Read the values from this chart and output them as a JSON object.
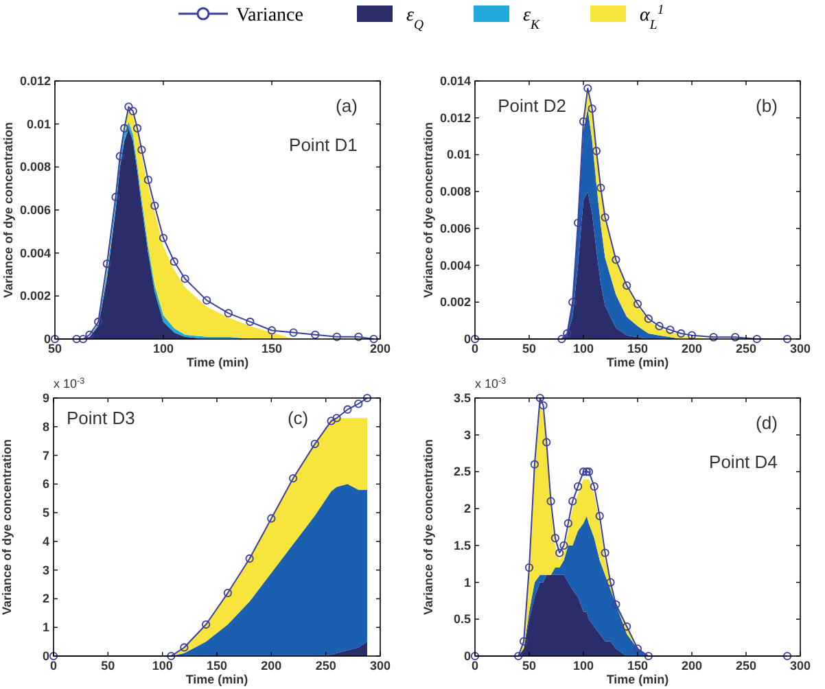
{
  "chart_data": [
    {
      "type": "area",
      "stacked": true,
      "legend": "top",
      "xlabel": "Time (min)",
      "ylabel": "Variance of dye concentration",
      "annotations": [
        "(a)",
        "Point D1"
      ],
      "x": [
        50,
        60,
        63,
        66,
        70,
        74,
        78,
        80,
        82,
        84,
        86,
        88,
        90,
        93,
        96,
        100,
        105,
        110,
        120,
        130,
        140,
        150,
        160,
        170,
        180,
        190,
        197
      ],
      "xlim": [
        50,
        200
      ],
      "xticks": [
        50,
        100,
        150,
        200
      ],
      "ylim": [
        0,
        0.012
      ],
      "yticks": [
        0,
        0.002,
        0.004,
        0.006,
        0.008,
        0.01,
        0.012
      ],
      "series": [
        {
          "name": "ε$_{Q}$",
          "color": "#2b2d6b",
          "values": [
            0,
            0,
            0,
            0.0001,
            0.0006,
            0.0028,
            0.006,
            0.008,
            0.0092,
            0.0098,
            0.0092,
            0.0078,
            0.0062,
            0.004,
            0.0022,
            0.0008,
            0.0003,
            0.0001,
            0,
            0,
            0,
            0,
            0,
            0,
            0,
            0,
            0
          ]
        },
        {
          "name": "ε$_{K}$",
          "color": "#1fa8d8",
          "values": [
            0,
            0,
            0,
            0,
            0.0001,
            0.0003,
            0.0004,
            0.0004,
            0.0004,
            0.0003,
            0.0003,
            0.0003,
            0.0003,
            0.0003,
            0.0003,
            0.0003,
            0.0002,
            0.0001,
            0.0001,
            0.0001,
            0,
            0,
            0,
            0,
            0,
            0,
            0
          ]
        },
        {
          "name": "α$_{L}$$^{1}$",
          "color": "#f7e43c",
          "values": [
            0,
            0,
            0,
            0,
            0.0001,
            0.0004,
            0.0002,
            0.0001,
            0.0002,
            0.0005,
            0.0009,
            0.0015,
            0.002,
            0.0028,
            0.0034,
            0.0032,
            0.0027,
            0.0022,
            0.0014,
            0.0009,
            0.0006,
            0.0003,
            0,
            0,
            0,
            0,
            0
          ]
        },
        {
          "type": "line",
          "marker": "circle",
          "name": "Variance",
          "color": "#3a3f9e",
          "values": [
            0,
            0,
            0,
            0.0002,
            0.0008,
            0.0035,
            0.0066,
            0.0085,
            0.0098,
            0.0108,
            0.0106,
            0.0098,
            0.0088,
            0.0074,
            0.0062,
            0.0047,
            0.0036,
            0.0028,
            0.0018,
            0.0012,
            0.0008,
            0.0004,
            0.0003,
            0.0002,
            0.0001,
            0.0001,
            0
          ]
        }
      ]
    },
    {
      "type": "area",
      "stacked": true,
      "xlabel": "Time (min)",
      "ylabel": "Variance of dye concentration",
      "annotations": [
        "(b)",
        "Point D2"
      ],
      "x": [
        0,
        80,
        85,
        90,
        95,
        100,
        104,
        108,
        112,
        116,
        120,
        130,
        140,
        150,
        160,
        170,
        180,
        190,
        200,
        220,
        240,
        260,
        288
      ],
      "xlim": [
        0,
        300
      ],
      "xticks": [
        0,
        50,
        100,
        150,
        200,
        250,
        300
      ],
      "ylim": [
        0,
        0.014
      ],
      "yticks": [
        0,
        0.002,
        0.004,
        0.006,
        0.008,
        0.01,
        0.012,
        0.014
      ],
      "series": [
        {
          "color": "#2b2d6b",
          "values": [
            0,
            0,
            0.0002,
            0.0012,
            0.004,
            0.0075,
            0.008,
            0.0068,
            0.0048,
            0.003,
            0.0018,
            0.0006,
            0.0002,
            0.0001,
            0,
            0,
            0,
            0,
            0,
            0,
            0,
            0,
            0
          ]
        },
        {
          "color": "#1a5fb0",
          "values": [
            0,
            0,
            0.0001,
            0.0007,
            0.002,
            0.0038,
            0.0045,
            0.004,
            0.0036,
            0.0032,
            0.0026,
            0.0018,
            0.001,
            0.0006,
            0.0003,
            0.0002,
            0.0001,
            0,
            0,
            0,
            0,
            0,
            0
          ]
        },
        {
          "color": "#f7e43c",
          "values": [
            0,
            0,
            0,
            0.0001,
            0.0003,
            0.0005,
            0.0009,
            0.0014,
            0.0016,
            0.0018,
            0.002,
            0.0018,
            0.0016,
            0.0011,
            0.0007,
            0.0004,
            0.0003,
            0.0002,
            0.0001,
            0,
            0,
            0,
            0
          ]
        },
        {
          "type": "line",
          "marker": "circle",
          "color": "#3a3f9e",
          "values": [
            0,
            0,
            0.0003,
            0.002,
            0.0063,
            0.0118,
            0.0136,
            0.0125,
            0.0102,
            0.0082,
            0.0066,
            0.0043,
            0.0029,
            0.0019,
            0.0011,
            0.0007,
            0.0005,
            0.0003,
            0.0002,
            0.0001,
            0.0001,
            0,
            0
          ]
        }
      ]
    },
    {
      "type": "area",
      "stacked": true,
      "xlabel": "Time (min)",
      "ylabel": "Variance of dye concentration",
      "annotations": [
        "(c)",
        "Point D3",
        "x 10$^{-3}$"
      ],
      "x": [
        0,
        108,
        120,
        140,
        160,
        180,
        200,
        220,
        240,
        255,
        260,
        270,
        280,
        288
      ],
      "xlim": [
        0,
        300
      ],
      "xticks": [
        0,
        50,
        100,
        150,
        200,
        250,
        300
      ],
      "ylim": [
        0,
        9
      ],
      "yticks": [
        0,
        1,
        2,
        3,
        4,
        5,
        6,
        7,
        8,
        9
      ],
      "series": [
        {
          "color": "#2b2d6b",
          "values": [
            0,
            0,
            0,
            0,
            0,
            0,
            0,
            0,
            0,
            0.05,
            0.1,
            0.2,
            0.3,
            0.5
          ]
        },
        {
          "color": "#1a5fb0",
          "values": [
            0,
            0,
            0.1,
            0.5,
            1.1,
            1.9,
            2.9,
            3.9,
            4.9,
            5.7,
            5.8,
            5.8,
            5.5,
            5.3
          ]
        },
        {
          "color": "#f7e43c",
          "values": [
            0,
            0,
            0.2,
            0.6,
            1.1,
            1.5,
            1.9,
            2.3,
            2.5,
            2.5,
            2.4,
            2.3,
            2.5,
            2.5
          ]
        },
        {
          "type": "line",
          "marker": "circle",
          "color": "#3a3f9e",
          "values": [
            0,
            0,
            0.3,
            1.1,
            2.2,
            3.4,
            4.8,
            6.2,
            7.4,
            8.2,
            8.3,
            8.6,
            8.8,
            9
          ]
        }
      ]
    },
    {
      "type": "area",
      "stacked": true,
      "xlabel": "Time (min)",
      "ylabel": "Variance of dye concentration",
      "annotations": [
        "(d)",
        "Point D4",
        "x 10$^{-3}$"
      ],
      "x": [
        0,
        40,
        45,
        50,
        55,
        60,
        63,
        66,
        70,
        74,
        78,
        82,
        86,
        90,
        95,
        100,
        103,
        105,
        110,
        115,
        120,
        125,
        130,
        140,
        150,
        160,
        288
      ],
      "xlim": [
        0,
        300
      ],
      "xticks": [
        0,
        50,
        100,
        150,
        200,
        250,
        300
      ],
      "ylim": [
        0,
        3.5
      ],
      "yticks": [
        0,
        0.5,
        1,
        1.5,
        2,
        2.5,
        3,
        3.5
      ],
      "series": [
        {
          "color": "#2b2d6b",
          "values": [
            0,
            0,
            0.1,
            0.5,
            0.8,
            1,
            1,
            1.1,
            1.1,
            1.1,
            1.1,
            1.1,
            1,
            0.9,
            0.8,
            0.6,
            0.6,
            0.5,
            0.4,
            0.3,
            0.2,
            0.2,
            0.1,
            0,
            0,
            0,
            0
          ]
        },
        {
          "color": "#1a5fb0",
          "values": [
            0,
            0,
            0,
            0.1,
            0.2,
            0.1,
            0.1,
            0,
            0,
            0.1,
            0.1,
            0.2,
            0.5,
            0.6,
            0.9,
            1.2,
            1.3,
            1.3,
            1.2,
            1,
            0.9,
            0.7,
            0.6,
            0.3,
            0.1,
            0,
            0
          ]
        },
        {
          "color": "#f7e43c",
          "values": [
            0,
            0,
            0.1,
            0.5,
            1.5,
            2.3,
            2.2,
            1.7,
            0.9,
            0.3,
            0.1,
            0.1,
            0.2,
            0.5,
            0.5,
            0.6,
            0.5,
            0.6,
            0.6,
            0.5,
            0.2,
            0.1,
            0,
            0.1,
            0,
            0,
            0
          ]
        },
        {
          "type": "line",
          "marker": "circle",
          "color": "#3a3f9e",
          "values": [
            0,
            0,
            0.2,
            1.2,
            2.6,
            3.5,
            3.4,
            2.9,
            2.1,
            1.6,
            1.4,
            1.5,
            1.8,
            2.1,
            2.3,
            2.5,
            2.5,
            2.5,
            2.3,
            1.9,
            1.4,
            1,
            0.7,
            0.4,
            0.1,
            0,
            0
          ]
        }
      ]
    }
  ]
}
